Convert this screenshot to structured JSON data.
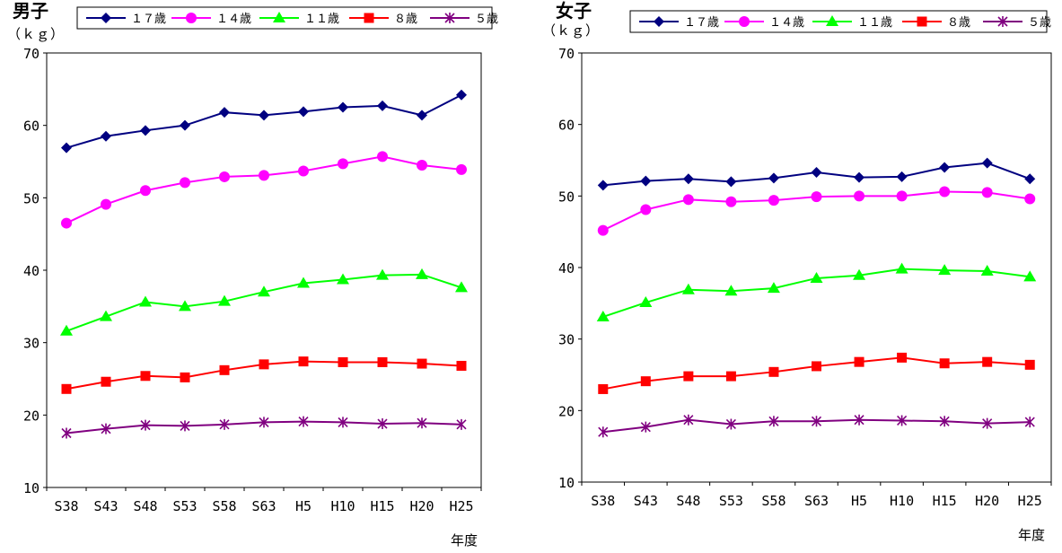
{
  "chart_data": [
    {
      "type": "line",
      "title": "男子",
      "ylabel": "（ｋｇ）",
      "xlabel": "年度",
      "ylim": [
        10,
        70
      ],
      "yticks": [
        10,
        20,
        30,
        40,
        50,
        60,
        70
      ],
      "grid": false,
      "legend": "top",
      "categories": [
        "S38",
        "S43",
        "S48",
        "S53",
        "S58",
        "S63",
        "H5",
        "H10",
        "H15",
        "H20",
        "H25"
      ],
      "series": [
        {
          "name": "１７歳",
          "color": "#000080",
          "marker": "diamond",
          "values": [
            56.9,
            58.5,
            59.3,
            60.0,
            61.8,
            61.4,
            61.9,
            62.5,
            62.7,
            61.4,
            64.2
          ]
        },
        {
          "name": "１４歳",
          "color": "#ff00ff",
          "marker": "circle",
          "values": [
            46.5,
            49.1,
            51.0,
            52.1,
            52.9,
            53.1,
            53.7,
            54.7,
            55.7,
            54.5,
            53.9
          ]
        },
        {
          "name": "１１歳",
          "color": "#00ff00",
          "marker": "triangle",
          "values": [
            31.6,
            33.6,
            35.6,
            35.0,
            35.7,
            37.0,
            38.2,
            38.7,
            39.3,
            39.4,
            37.6
          ]
        },
        {
          "name": "８歳",
          "color": "#ff0000",
          "marker": "square",
          "values": [
            23.6,
            24.6,
            25.4,
            25.2,
            26.2,
            27.0,
            27.4,
            27.3,
            27.3,
            27.1,
            26.8
          ]
        },
        {
          "name": "５歳",
          "color": "#800080",
          "marker": "asterisk",
          "values": [
            17.5,
            18.1,
            18.6,
            18.5,
            18.7,
            19.0,
            19.1,
            19.0,
            18.8,
            18.9,
            18.7
          ]
        }
      ]
    },
    {
      "type": "line",
      "title": "女子",
      "ylabel": "（ｋｇ）",
      "xlabel": "年度",
      "ylim": [
        10,
        70
      ],
      "yticks": [
        10,
        20,
        30,
        40,
        50,
        60,
        70
      ],
      "grid": false,
      "legend": "top",
      "categories": [
        "S38",
        "S43",
        "S48",
        "S53",
        "S58",
        "S63",
        "H5",
        "H10",
        "H15",
        "H20",
        "H25"
      ],
      "series": [
        {
          "name": "１７歳",
          "color": "#000080",
          "marker": "diamond",
          "values": [
            51.5,
            52.1,
            52.4,
            52.0,
            52.5,
            53.3,
            52.6,
            52.7,
            54.0,
            54.6,
            52.4
          ]
        },
        {
          "name": "１４歳",
          "color": "#ff00ff",
          "marker": "circle",
          "values": [
            45.2,
            48.1,
            49.5,
            49.2,
            49.4,
            49.9,
            50.0,
            50.0,
            50.6,
            50.5,
            49.6
          ]
        },
        {
          "name": "１１歳",
          "color": "#00ff00",
          "marker": "triangle",
          "values": [
            33.1,
            35.1,
            36.9,
            36.7,
            37.1,
            38.5,
            38.9,
            39.8,
            39.6,
            39.5,
            38.7
          ]
        },
        {
          "name": "８歳",
          "color": "#ff0000",
          "marker": "square",
          "values": [
            23.0,
            24.1,
            24.8,
            24.8,
            25.4,
            26.2,
            26.8,
            27.4,
            26.6,
            26.8,
            26.4
          ]
        },
        {
          "name": "５歳",
          "color": "#800080",
          "marker": "asterisk",
          "values": [
            17.0,
            17.7,
            18.7,
            18.1,
            18.5,
            18.5,
            18.7,
            18.6,
            18.5,
            18.2,
            18.4
          ]
        }
      ]
    }
  ]
}
